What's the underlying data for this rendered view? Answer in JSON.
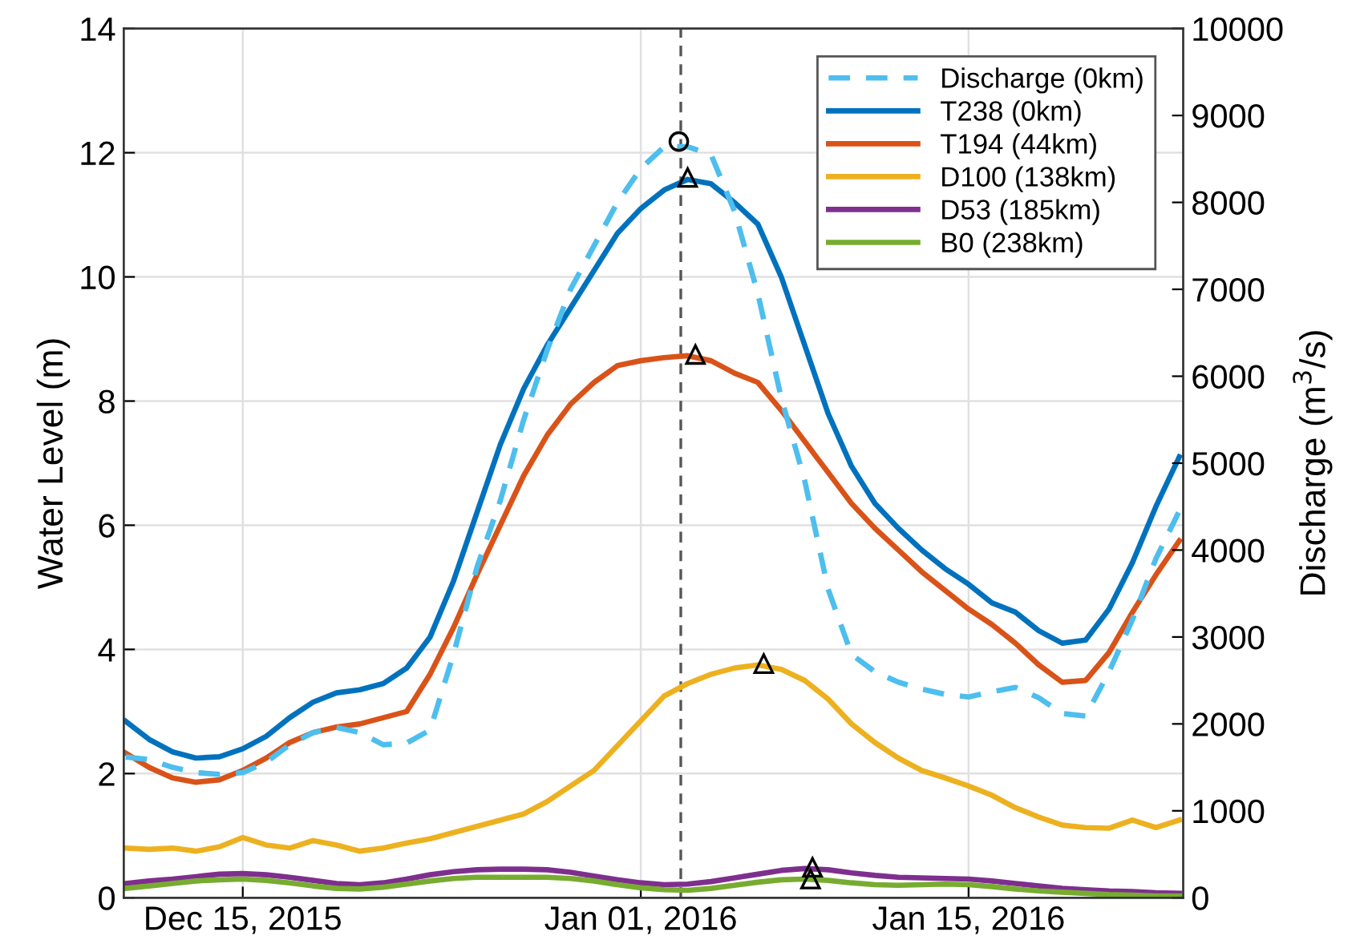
{
  "chart_data": {
    "type": "line",
    "xlabel": null,
    "ylabel": "Water Level (m)",
    "y2label": "Discharge (m$^{3}$/s)",
    "x": [
      "2015-12-10",
      "2015-12-11",
      "2015-12-12",
      "2015-12-13",
      "2015-12-14",
      "2015-12-15",
      "2015-12-16",
      "2015-12-17",
      "2015-12-18",
      "2015-12-19",
      "2015-12-20",
      "2015-12-21",
      "2015-12-22",
      "2015-12-23",
      "2015-12-24",
      "2015-12-25",
      "2015-12-26",
      "2015-12-27",
      "2015-12-28",
      "2015-12-29",
      "2015-12-30",
      "2015-12-31",
      "2016-01-01",
      "2016-01-02",
      "2016-01-03",
      "2016-01-04",
      "2016-01-05",
      "2016-01-06",
      "2016-01-07",
      "2016-01-08",
      "2016-01-09",
      "2016-01-10",
      "2016-01-11",
      "2016-01-12",
      "2016-01-13",
      "2016-01-14",
      "2016-01-15",
      "2016-01-16",
      "2016-01-17",
      "2016-01-18",
      "2016-01-19",
      "2016-01-20",
      "2016-01-21",
      "2016-01-22",
      "2016-01-23",
      "2016-01-24"
    ],
    "series": [
      {
        "name": "Discharge (0km)",
        "color": "#4dbeee",
        "axis": "y2",
        "line_style": "dashed",
        "values": [
          1620,
          1590,
          1500,
          1440,
          1420,
          1440,
          1560,
          1760,
          1900,
          1960,
          1900,
          1760,
          1780,
          1930,
          2800,
          3800,
          4570,
          5500,
          6300,
          7000,
          7500,
          8000,
          8390,
          8640,
          8640,
          8550,
          7900,
          6950,
          5750,
          4800,
          3550,
          2800,
          2600,
          2480,
          2400,
          2340,
          2310,
          2370,
          2420,
          2300,
          2120,
          2090,
          2600,
          3200,
          3900,
          4450
        ]
      },
      {
        "name": "T238 (0km)",
        "color": "#0072bd",
        "values": [
          2.84,
          2.55,
          2.35,
          2.25,
          2.27,
          2.4,
          2.6,
          2.9,
          3.15,
          3.3,
          3.35,
          3.45,
          3.7,
          4.2,
          5.1,
          6.2,
          7.3,
          8.2,
          8.9,
          9.5,
          10.1,
          10.7,
          11.1,
          11.4,
          11.57,
          11.5,
          11.2,
          10.85,
          10.0,
          8.9,
          7.8,
          6.95,
          6.35,
          5.95,
          5.6,
          5.3,
          5.05,
          4.75,
          4.6,
          4.3,
          4.1,
          4.15,
          4.65,
          5.4,
          6.3,
          7.1
        ]
      },
      {
        "name": "T194 (44km)",
        "color": "#d95319",
        "values": [
          2.33,
          2.1,
          1.93,
          1.86,
          1.9,
          2.05,
          2.25,
          2.5,
          2.66,
          2.75,
          2.8,
          2.9,
          3.0,
          3.6,
          4.35,
          5.2,
          6.0,
          6.8,
          7.45,
          7.95,
          8.3,
          8.57,
          8.65,
          8.7,
          8.73,
          8.65,
          8.45,
          8.3,
          7.85,
          7.35,
          6.85,
          6.35,
          5.95,
          5.6,
          5.25,
          4.95,
          4.65,
          4.4,
          4.1,
          3.75,
          3.47,
          3.5,
          3.95,
          4.6,
          5.2,
          5.75
        ]
      },
      {
        "name": "D100 (138km)",
        "color": "#edb120",
        "values": [
          0.8,
          0.78,
          0.8,
          0.75,
          0.82,
          0.97,
          0.85,
          0.8,
          0.92,
          0.85,
          0.75,
          0.8,
          0.88,
          0.95,
          1.05,
          1.15,
          1.25,
          1.35,
          1.55,
          1.8,
          2.05,
          2.45,
          2.85,
          3.25,
          3.45,
          3.6,
          3.7,
          3.75,
          3.68,
          3.5,
          3.2,
          2.8,
          2.5,
          2.25,
          2.05,
          1.93,
          1.8,
          1.65,
          1.45,
          1.3,
          1.17,
          1.13,
          1.12,
          1.25,
          1.13,
          1.25
        ]
      },
      {
        "name": "D53 (185km)",
        "color": "#7e2f8e",
        "values": [
          0.23,
          0.27,
          0.3,
          0.34,
          0.38,
          0.39,
          0.37,
          0.33,
          0.28,
          0.23,
          0.21,
          0.24,
          0.3,
          0.37,
          0.42,
          0.45,
          0.46,
          0.46,
          0.45,
          0.41,
          0.35,
          0.29,
          0.24,
          0.21,
          0.22,
          0.26,
          0.32,
          0.38,
          0.44,
          0.47,
          0.45,
          0.4,
          0.36,
          0.33,
          0.32,
          0.31,
          0.3,
          0.27,
          0.23,
          0.19,
          0.15,
          0.13,
          0.11,
          0.1,
          0.08,
          0.07
        ]
      },
      {
        "name": "B0 (238km)",
        "color": "#77ac30",
        "values": [
          0.15,
          0.19,
          0.23,
          0.27,
          0.29,
          0.3,
          0.28,
          0.24,
          0.19,
          0.15,
          0.14,
          0.17,
          0.22,
          0.27,
          0.31,
          0.33,
          0.33,
          0.33,
          0.33,
          0.31,
          0.27,
          0.21,
          0.16,
          0.13,
          0.12,
          0.15,
          0.2,
          0.25,
          0.29,
          0.3,
          0.28,
          0.24,
          0.21,
          0.2,
          0.21,
          0.22,
          0.21,
          0.18,
          0.14,
          0.11,
          0.09,
          0.07,
          0.05,
          0.04,
          0.03,
          0.03
        ]
      },
      {
        "type": "scatter",
        "color": "#000000",
        "marker": "circle",
        "axis": "y2",
        "x": [
          "2016-01-02T15:00"
        ],
        "values": [
          8700
        ]
      },
      {
        "type": "scatter",
        "color": "#000000",
        "marker": "triangle",
        "x": [
          "2016-01-03T00:00",
          "2016-01-03T08:00",
          "2016-01-06T06:00",
          "2016-01-08T08:00",
          "2016-01-08T06:00"
        ],
        "values": [
          11.6,
          8.75,
          3.77,
          0.49,
          0.3
        ]
      }
    ],
    "xlim": [
      "2015-12-09T22:00",
      "2016-01-24T04:00"
    ],
    "xticks": [
      {
        "value": "2015-12-15",
        "label": "Dec 15, 2015"
      },
      {
        "value": "2016-01-01",
        "label": "Jan 01, 2016"
      },
      {
        "value": "2016-01-15",
        "label": "Jan 15, 2016"
      }
    ],
    "ylim": [
      0,
      14
    ],
    "yticks": [
      0,
      2,
      4,
      6,
      8,
      10,
      12,
      14
    ],
    "y2lim": [
      0,
      10000
    ],
    "y2ticks": [
      0,
      1000,
      2000,
      3000,
      4000,
      5000,
      6000,
      7000,
      8000,
      9000,
      10000
    ],
    "ref_lines": [
      {
        "axis": "x",
        "value": "2016-01-02T17:00",
        "color": "#555555",
        "line_style": "dashed"
      }
    ],
    "grid": true,
    "legend": "top right",
    "marker": "none",
    "line_style": "solid"
  }
}
